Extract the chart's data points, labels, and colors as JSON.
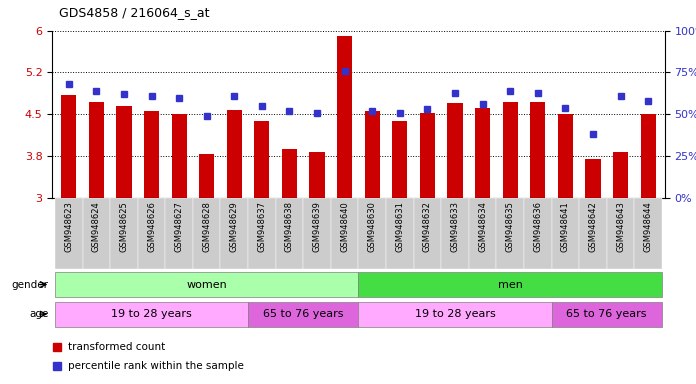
{
  "title": "GDS4858 / 216064_s_at",
  "samples": [
    "GSM948623",
    "GSM948624",
    "GSM948625",
    "GSM948626",
    "GSM948627",
    "GSM948628",
    "GSM948629",
    "GSM948637",
    "GSM948638",
    "GSM948639",
    "GSM948640",
    "GSM948630",
    "GSM948631",
    "GSM948632",
    "GSM948633",
    "GSM948634",
    "GSM948635",
    "GSM948636",
    "GSM948641",
    "GSM948642",
    "GSM948643",
    "GSM948644"
  ],
  "bar_values": [
    4.85,
    4.72,
    4.65,
    4.55,
    4.5,
    3.78,
    4.58,
    4.37,
    3.87,
    3.83,
    5.9,
    4.55,
    4.38,
    4.52,
    4.7,
    4.62,
    4.72,
    4.72,
    4.5,
    3.7,
    3.82,
    4.5
  ],
  "dot_percentiles": [
    68,
    64,
    62,
    61,
    60,
    49,
    61,
    55,
    52,
    51,
    76,
    52,
    51,
    53,
    63,
    56,
    64,
    63,
    54,
    38,
    61,
    58
  ],
  "bar_color": "#cc0000",
  "dot_color": "#3333cc",
  "ylim_left": [
    3.0,
    6.0
  ],
  "yticks_left": [
    3.0,
    3.75,
    4.5,
    5.25,
    6.0
  ],
  "yticks_right": [
    0,
    25,
    50,
    75,
    100
  ],
  "gender_groups": [
    {
      "label": "women",
      "start": 0,
      "end": 10,
      "color": "#aaffaa"
    },
    {
      "label": "men",
      "start": 11,
      "end": 21,
      "color": "#44dd44"
    }
  ],
  "age_groups": [
    {
      "label": "19 to 28 years",
      "start": 0,
      "end": 6,
      "color": "#ffaaff"
    },
    {
      "label": "65 to 76 years",
      "start": 7,
      "end": 10,
      "color": "#dd66dd"
    },
    {
      "label": "19 to 28 years",
      "start": 11,
      "end": 17,
      "color": "#ffaaff"
    },
    {
      "label": "65 to 76 years",
      "start": 18,
      "end": 21,
      "color": "#dd66dd"
    }
  ],
  "background_color": "#ffffff",
  "tick_label_color_left": "#cc0000",
  "tick_label_color_right": "#3333cc",
  "xtick_bg_color": "#cccccc",
  "fig_width": 6.96,
  "fig_height": 3.84,
  "dpi": 100
}
